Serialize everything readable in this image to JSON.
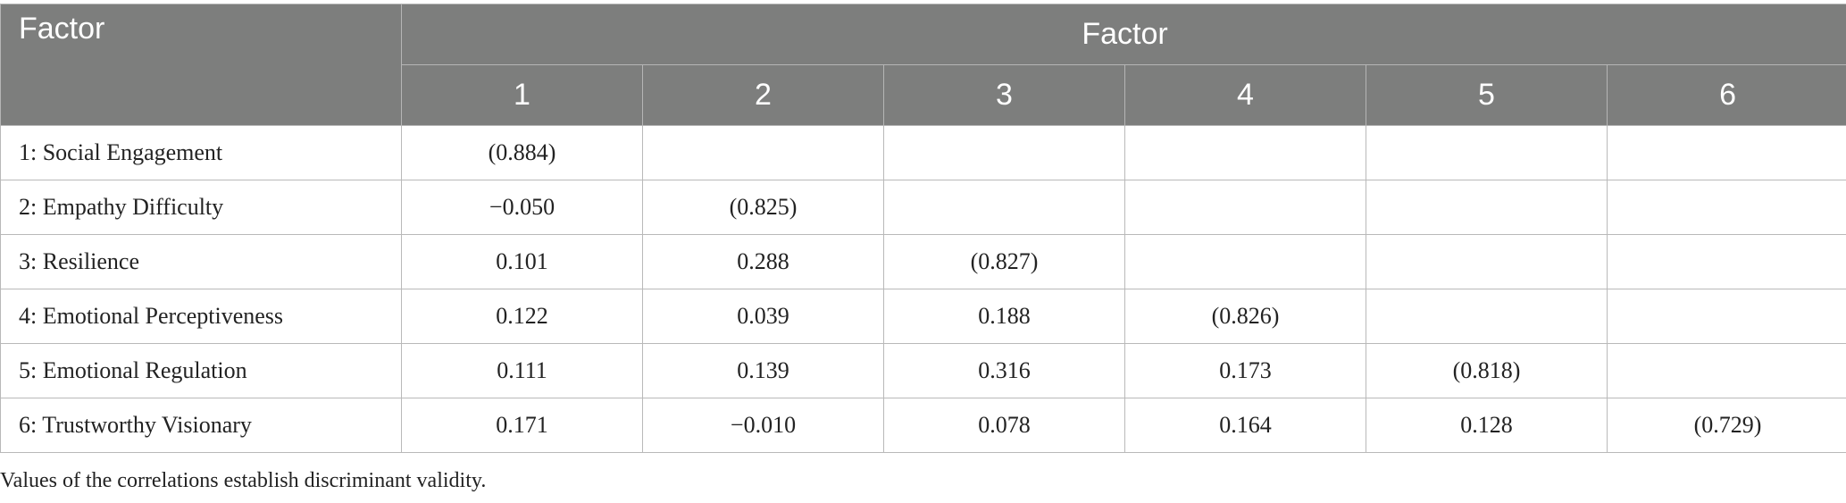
{
  "table": {
    "corner_header": "Factor",
    "group_header": "Factor",
    "column_numbers": [
      "1",
      "2",
      "3",
      "4",
      "5",
      "6"
    ],
    "rows": [
      {
        "label": "1: Social Engagement",
        "cells": [
          "(0.884)",
          "",
          "",
          "",
          "",
          ""
        ]
      },
      {
        "label": "2: Empathy Difficulty",
        "cells": [
          "−0.050",
          "(0.825)",
          "",
          "",
          "",
          ""
        ]
      },
      {
        "label": "3: Resilience",
        "cells": [
          "0.101",
          "0.288",
          "(0.827)",
          "",
          "",
          ""
        ]
      },
      {
        "label": "4: Emotional Perceptiveness",
        "cells": [
          "0.122",
          "0.039",
          "0.188",
          "(0.826)",
          "",
          ""
        ]
      },
      {
        "label": "5: Emotional Regulation",
        "cells": [
          "0.111",
          "0.139",
          "0.316",
          "0.173",
          "(0.818)",
          ""
        ]
      },
      {
        "label": "6: Trustworthy Visionary",
        "cells": [
          "0.171",
          "−0.010",
          "0.078",
          "0.164",
          "0.128",
          "(0.729)"
        ]
      }
    ]
  },
  "footnote": "Values of the correlations establish discriminant validity.",
  "colors": {
    "header_background": "#7d7e7d",
    "header_text": "#ffffff",
    "grid_lines": "#b9b9b9"
  }
}
